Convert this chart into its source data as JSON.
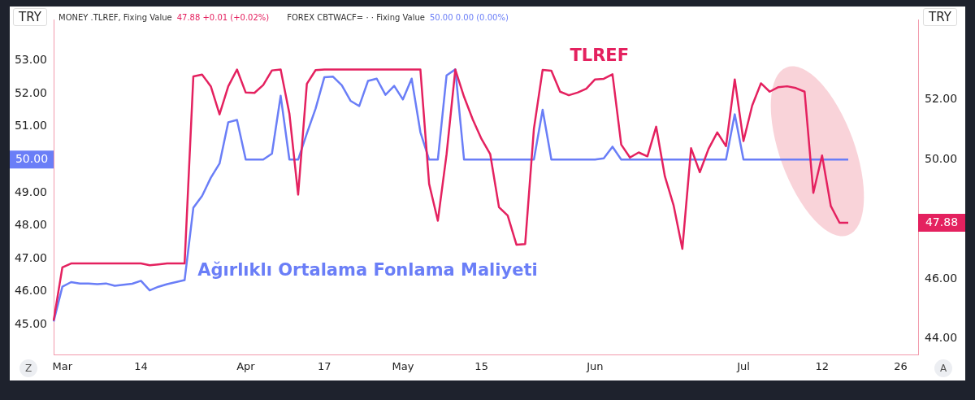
{
  "chart_data": {
    "type": "line",
    "ylabel": "TRY",
    "y2label": "TRY",
    "annotations": [
      "MONEY .TLREF, Fixing Value",
      "47.88  +0.01 (+0.02%)",
      "FOREX CBTWACF= ·  · Fixing Value",
      "50.00  0.00 (0.00%)",
      "Z",
      "A"
    ],
    "categories": [
      null,
      "Mar",
      null,
      null,
      null,
      null,
      null,
      null,
      null,
      null,
      "14",
      null,
      null,
      null,
      null,
      null,
      null,
      null,
      null,
      null,
      null,
      null,
      "Apr",
      null,
      null,
      null,
      null,
      null,
      null,
      null,
      null,
      "17",
      null,
      null,
      null,
      null,
      null,
      null,
      null,
      null,
      "May",
      null,
      null,
      null,
      null,
      null,
      null,
      null,
      null,
      "15",
      null,
      null,
      null,
      null,
      null,
      null,
      null,
      null,
      null,
      null,
      null,
      null,
      "Jun",
      null,
      null,
      null,
      null,
      null,
      null,
      null,
      null,
      null,
      null,
      null,
      null,
      null,
      null,
      null,
      null,
      "Jul",
      null,
      null,
      null,
      null,
      null,
      null,
      null,
      null,
      "12",
      null,
      null,
      null,
      null,
      null,
      null,
      null,
      null,
      "26",
      null,
      null
    ],
    "series": [
      {
        "name": "TLREF",
        "color": "#e4215f",
        "axis": "y2",
        "values": [
          44.61,
          46.39,
          46.52,
          46.52,
          46.52,
          46.52,
          46.52,
          46.52,
          46.52,
          46.52,
          46.52,
          46.46,
          46.49,
          46.52,
          46.52,
          46.52,
          52.77,
          52.83,
          52.44,
          51.5,
          52.44,
          53.0,
          52.23,
          52.22,
          52.48,
          52.97,
          53.0,
          51.53,
          48.82,
          52.52,
          52.98,
          53.0,
          53.0,
          53.0,
          53.0,
          53.0,
          53.0,
          53.0,
          53.0,
          53.0,
          53.0,
          53.0,
          53.0,
          49.18,
          47.95,
          50.17,
          53.0,
          52.09,
          51.33,
          50.68,
          50.17,
          48.4,
          48.12,
          47.15,
          47.17,
          51.02,
          52.99,
          52.96,
          52.26,
          52.14,
          52.23,
          52.36,
          52.67,
          52.69,
          52.84,
          50.49,
          50.06,
          50.23,
          50.1,
          51.09,
          49.43,
          48.46,
          47.01,
          50.37,
          49.57,
          50.35,
          50.9,
          50.44,
          52.67,
          50.61,
          51.8,
          52.54,
          52.26,
          52.41,
          52.44,
          52.38,
          52.26,
          48.88,
          50.13,
          48.44,
          47.88,
          47.88,
          null,
          null,
          null,
          null,
          null,
          null,
          null,
          null
        ]
      },
      {
        "name": "Ağırlıklı Ortalama Fonlama Maliyeti",
        "color": "#6a7ef7",
        "values": [
          45.1,
          46.15,
          46.29,
          46.25,
          46.25,
          46.23,
          46.25,
          46.18,
          46.21,
          46.24,
          46.33,
          46.04,
          46.15,
          46.23,
          46.29,
          46.35,
          48.54,
          48.9,
          49.45,
          49.88,
          51.13,
          51.2,
          50,
          50,
          50,
          50.18,
          51.93,
          50,
          50,
          50.79,
          51.54,
          52.49,
          52.51,
          52.25,
          51.78,
          51.62,
          52.38,
          52.45,
          51.96,
          52.23,
          51.82,
          52.45,
          50.83,
          50,
          50,
          52.55,
          52.73,
          50,
          50,
          50,
          50,
          50,
          50,
          50,
          50,
          50,
          51.51,
          50,
          50,
          50,
          50,
          50,
          50,
          50.04,
          50.39,
          50,
          50,
          50,
          50,
          50,
          50,
          50,
          50,
          50,
          50,
          50,
          50,
          50,
          51.37,
          50,
          50,
          50,
          50,
          50,
          50,
          50,
          50,
          50,
          50,
          50,
          50,
          50,
          null,
          null,
          null,
          null,
          null,
          null,
          null,
          null
        ]
      }
    ],
    "ylim": [
      44.1,
      54.23
    ],
    "yticks": [
      {
        "value": 45,
        "label": "45.00"
      },
      {
        "value": 46,
        "label": "46.00"
      },
      {
        "value": 47,
        "label": "47.00"
      },
      {
        "value": 48,
        "label": "48.00"
      },
      {
        "value": 49,
        "label": "49.00"
      },
      {
        "value": 50,
        "label": "50.00"
      },
      {
        "value": 51,
        "label": "51.00"
      },
      {
        "value": 52,
        "label": "52.00"
      },
      {
        "value": 53,
        "label": "53.00"
      }
    ],
    "y2lim": [
      43.48,
      54.66
    ],
    "y2ticks": [
      {
        "value": 44,
        "label": "44.00"
      },
      {
        "value": 46,
        "label": "46.00"
      },
      {
        "value": 47.88,
        "label": "47.88"
      },
      {
        "value": 50,
        "label": "50.00"
      },
      {
        "value": 52,
        "label": "52.00"
      }
    ],
    "grid": false,
    "legend": false,
    "marker": "none",
    "line_style": "solid"
  }
}
